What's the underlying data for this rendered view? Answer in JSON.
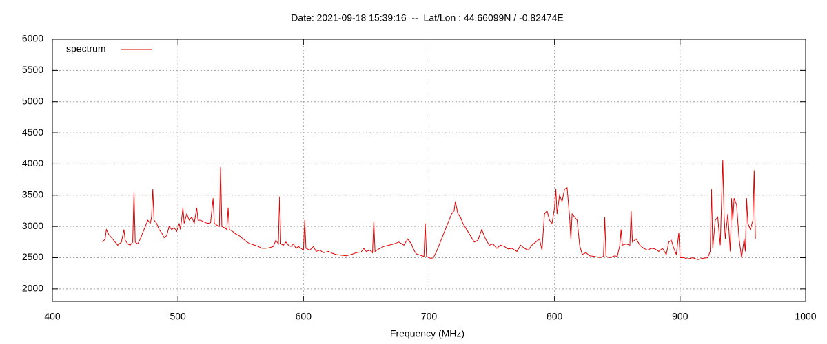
{
  "chart_data": {
    "type": "line",
    "title": "Date: 2021-09-18 15:39:16  --  Lat/Lon : 44.66099N / -0.82474E",
    "xlabel": "Frequency (MHz)",
    "xlim": [
      400,
      1000
    ],
    "xticks": [
      400,
      500,
      600,
      700,
      800,
      900,
      1000
    ],
    "ylim": [
      1800,
      6000
    ],
    "yticks": [
      2000,
      2500,
      3000,
      3500,
      4000,
      4500,
      5000,
      5500,
      6000
    ],
    "grid": true,
    "legend": "top-left",
    "x": [
      440,
      442,
      443,
      445,
      448,
      450,
      452,
      455,
      457,
      458,
      460,
      462,
      464,
      465,
      466,
      468,
      470,
      472,
      474,
      476,
      478,
      479,
      480,
      481,
      483,
      485,
      487,
      489,
      491,
      493,
      495,
      497,
      499,
      501,
      502,
      504,
      505,
      507,
      509,
      511,
      513,
      515,
      516,
      518,
      520,
      522,
      524,
      526,
      528,
      529,
      531,
      533,
      534,
      535,
      537,
      539,
      540,
      541,
      543,
      546,
      549,
      552,
      555,
      558,
      561,
      564,
      567,
      570,
      573,
      576,
      578,
      580,
      581,
      582,
      584,
      586,
      588,
      590,
      592,
      594,
      596,
      598,
      600,
      601,
      602,
      605,
      608,
      610,
      613,
      616,
      620,
      623,
      626,
      630,
      634,
      638,
      642,
      646,
      648,
      650,
      653,
      655,
      656,
      657,
      660,
      664,
      668,
      672,
      676,
      680,
      683,
      686,
      688,
      690,
      693,
      696,
      697,
      698,
      700,
      703,
      706,
      709,
      712,
      715,
      718,
      720,
      721,
      723,
      725,
      727,
      730,
      733,
      736,
      739,
      742,
      745,
      748,
      751,
      754,
      757,
      760,
      763,
      766,
      770,
      773,
      776,
      779,
      782,
      785,
      788,
      790,
      792,
      794,
      796,
      798,
      800,
      801,
      802,
      804,
      806,
      808,
      810,
      812,
      813,
      814,
      816,
      818,
      820,
      822,
      825,
      828,
      832,
      836,
      839,
      840,
      841,
      844,
      848,
      850,
      852,
      853,
      854,
      857,
      860,
      861,
      862,
      865,
      868,
      871,
      874,
      877,
      880,
      883,
      886,
      889,
      891,
      893,
      895,
      897,
      899,
      900,
      903,
      906,
      910,
      914,
      918,
      922,
      924,
      925,
      926,
      928,
      930,
      932,
      934,
      935,
      936,
      938,
      940,
      941,
      942,
      943,
      945,
      947,
      949,
      951,
      952,
      953,
      954,
      956,
      958,
      959,
      960
    ],
    "series": [
      {
        "name": "spectrum",
        "color": "#e00000",
        "values": [
          2750,
          2800,
          2950,
          2870,
          2800,
          2750,
          2700,
          2750,
          2950,
          2780,
          2720,
          2700,
          2750,
          3550,
          2750,
          2720,
          2800,
          2900,
          3000,
          3100,
          3050,
          3150,
          3600,
          3100,
          3050,
          2950,
          2900,
          2820,
          2850,
          3000,
          2950,
          2980,
          2920,
          3050,
          2950,
          3300,
          3050,
          3200,
          3100,
          3150,
          3050,
          3300,
          3100,
          3100,
          3080,
          3060,
          3050,
          3060,
          3450,
          3050,
          3020,
          3000,
          3950,
          3000,
          2980,
          2950,
          3300,
          2950,
          2930,
          2880,
          2850,
          2800,
          2750,
          2720,
          2700,
          2680,
          2650,
          2650,
          2660,
          2680,
          2780,
          2720,
          3480,
          2720,
          2700,
          2750,
          2700,
          2680,
          2720,
          2650,
          2680,
          2650,
          2620,
          3100,
          2650,
          2620,
          2680,
          2600,
          2620,
          2580,
          2600,
          2570,
          2550,
          2540,
          2530,
          2550,
          2580,
          2590,
          2650,
          2600,
          2620,
          2580,
          3080,
          2600,
          2640,
          2680,
          2700,
          2720,
          2750,
          2700,
          2800,
          2720,
          2620,
          2560,
          2540,
          2520,
          3050,
          2520,
          2500,
          2480,
          2600,
          2750,
          2900,
          3050,
          3200,
          3250,
          3400,
          3200,
          3150,
          3050,
          2950,
          2850,
          2750,
          2780,
          2950,
          2800,
          2700,
          2720,
          2650,
          2700,
          2680,
          2640,
          2650,
          2600,
          2700,
          2650,
          2620,
          2700,
          2750,
          2800,
          2620,
          3200,
          3250,
          3100,
          3050,
          3300,
          3600,
          3200,
          3500,
          3400,
          3600,
          3620,
          3150,
          2800,
          3200,
          3150,
          3100,
          2700,
          2550,
          2580,
          2530,
          2520,
          2500,
          2520,
          3150,
          2520,
          2500,
          2530,
          2520,
          2700,
          2950,
          2700,
          2720,
          2700,
          3250,
          2750,
          2800,
          2700,
          2650,
          2620,
          2650,
          2640,
          2600,
          2650,
          2550,
          2750,
          2780,
          2650,
          2550,
          2900,
          2500,
          2500,
          2480,
          2500,
          2470,
          2490,
          2500,
          2600,
          3600,
          2650,
          3100,
          3150,
          2700,
          4070,
          3200,
          2800,
          3200,
          2600,
          3450,
          3100,
          3450,
          3350,
          2800,
          2500,
          2800,
          2600,
          3450,
          3050,
          2950,
          3100,
          3900,
          2800
        ]
      }
    ]
  }
}
